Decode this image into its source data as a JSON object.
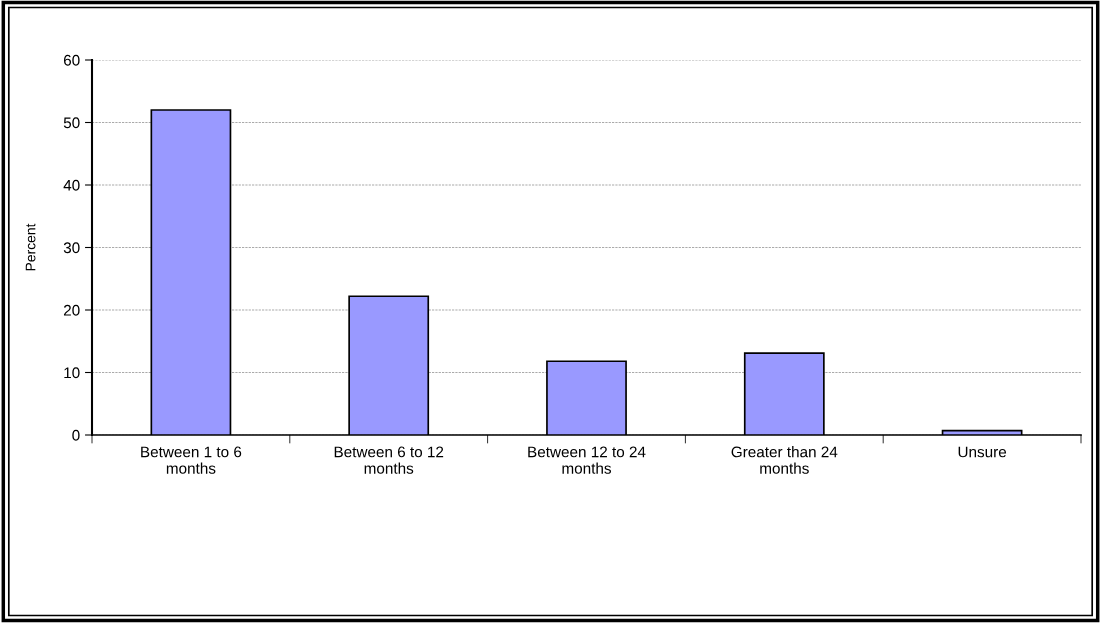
{
  "chart_data": {
    "type": "bar",
    "ylabel": "Percent",
    "categories": [
      "Between 1 to 6 months",
      "Between 6 to 12 months",
      "Between 12 to 24 months",
      "Greater than 24 months",
      "Unsure"
    ],
    "values": [
      52,
      22.2,
      11.8,
      13.1,
      0.7
    ],
    "color": "#9999ff",
    "ylim": [
      0,
      60
    ],
    "yticks": [
      0,
      10,
      20,
      30,
      40,
      50,
      60
    ],
    "grid": "y"
  }
}
